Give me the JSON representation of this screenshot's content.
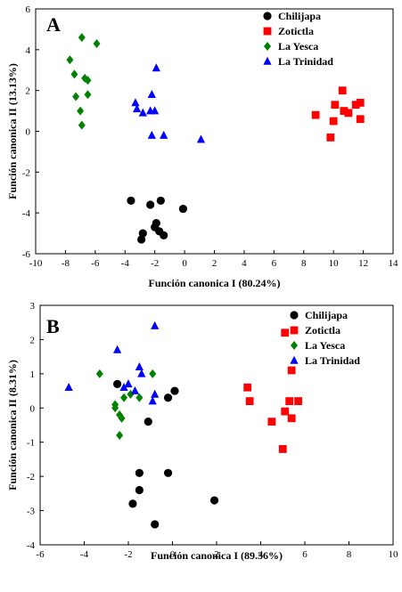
{
  "chart_data": [
    {
      "type": "scatter",
      "panel_label": "A",
      "xlabel": "Función canonica I (80.24%)",
      "ylabel": "Función canonica II (13.13%)",
      "xlim": [
        -10,
        14
      ],
      "ylim": [
        -6,
        6
      ],
      "xticks": [
        -10,
        -8,
        -6,
        -4,
        -2,
        0,
        2,
        4,
        6,
        8,
        10,
        12,
        14
      ],
      "yticks": [
        -6,
        -4,
        -2,
        0,
        2,
        4,
        6
      ],
      "legend_position": "top-right",
      "series": [
        {
          "name": "Chilijapa",
          "marker": "circle",
          "color": "#000000",
          "points": [
            [
              -3.6,
              -3.4
            ],
            [
              -2.8,
              -5.0
            ],
            [
              -2.9,
              -5.3
            ],
            [
              -2.3,
              -3.6
            ],
            [
              -1.6,
              -3.4
            ],
            [
              -1.9,
              -4.5
            ],
            [
              -2.0,
              -4.7
            ],
            [
              -1.7,
              -4.9
            ],
            [
              -1.4,
              -5.1
            ],
            [
              -0.1,
              -3.8
            ]
          ]
        },
        {
          "name": "Zotictla",
          "marker": "square",
          "color": "#ff0000",
          "points": [
            [
              8.8,
              0.8
            ],
            [
              9.8,
              -0.3
            ],
            [
              10.0,
              0.5
            ],
            [
              10.1,
              1.3
            ],
            [
              10.6,
              2.0
            ],
            [
              10.7,
              1.0
            ],
            [
              11.0,
              0.9
            ],
            [
              11.5,
              1.3
            ],
            [
              11.8,
              1.4
            ],
            [
              11.8,
              0.6
            ]
          ]
        },
        {
          "name": "La Yesca",
          "marker": "diamond",
          "color": "#008000",
          "points": [
            [
              -7.7,
              3.5
            ],
            [
              -7.4,
              2.8
            ],
            [
              -7.3,
              1.7
            ],
            [
              -7.0,
              1.0
            ],
            [
              -6.9,
              0.3
            ],
            [
              -6.9,
              4.6
            ],
            [
              -6.7,
              2.6
            ],
            [
              -6.5,
              2.5
            ],
            [
              -6.5,
              1.8
            ],
            [
              -5.9,
              4.3
            ]
          ]
        },
        {
          "name": "La Trinidad",
          "marker": "triangle",
          "color": "#0000ff",
          "points": [
            [
              -3.3,
              1.4
            ],
            [
              -3.2,
              1.1
            ],
            [
              -2.8,
              0.9
            ],
            [
              -2.3,
              1.0
            ],
            [
              -2.2,
              1.8
            ],
            [
              -2.0,
              1.0
            ],
            [
              -1.9,
              3.1
            ],
            [
              -2.2,
              -0.2
            ],
            [
              -1.4,
              -0.2
            ],
            [
              1.1,
              -0.4
            ]
          ]
        }
      ]
    },
    {
      "type": "scatter",
      "panel_label": "B",
      "xlabel": "Función canonica I (89.36%)",
      "ylabel": "Función canonica II (8.31%)",
      "xlim": [
        -6,
        10
      ],
      "ylim": [
        -4,
        3
      ],
      "xticks": [
        -6,
        -4,
        -2,
        0,
        2,
        4,
        6,
        8,
        10
      ],
      "yticks": [
        -4,
        -3,
        -2,
        -1,
        0,
        1,
        2,
        3
      ],
      "legend_position": "top-right",
      "series": [
        {
          "name": "Chilijapa",
          "marker": "circle",
          "color": "#000000",
          "points": [
            [
              -2.5,
              0.7
            ],
            [
              -1.1,
              -0.4
            ],
            [
              -0.2,
              0.3
            ],
            [
              0.1,
              0.5
            ],
            [
              -1.5,
              -1.9
            ],
            [
              -1.5,
              -2.4
            ],
            [
              -0.2,
              -1.9
            ],
            [
              -1.8,
              -2.8
            ],
            [
              1.9,
              -2.7
            ],
            [
              -0.8,
              -3.4
            ]
          ]
        },
        {
          "name": "Zotictla",
          "marker": "square",
          "color": "#ff0000",
          "points": [
            [
              3.4,
              0.6
            ],
            [
              3.5,
              0.2
            ],
            [
              4.5,
              -0.4
            ],
            [
              5.0,
              -1.2
            ],
            [
              5.1,
              -0.1
            ],
            [
              5.1,
              2.2
            ],
            [
              5.3,
              0.2
            ],
            [
              5.4,
              1.1
            ],
            [
              5.4,
              -0.3
            ],
            [
              5.7,
              0.2
            ]
          ]
        },
        {
          "name": "La Yesca",
          "marker": "diamond",
          "color": "#008000",
          "points": [
            [
              -3.3,
              1.0
            ],
            [
              -2.6,
              0.1
            ],
            [
              -2.6,
              0.0
            ],
            [
              -2.4,
              -0.2
            ],
            [
              -2.3,
              -0.3
            ],
            [
              -2.2,
              0.3
            ],
            [
              -2.4,
              -0.8
            ],
            [
              -1.9,
              0.4
            ],
            [
              -1.5,
              0.3
            ],
            [
              -0.9,
              1.0
            ]
          ]
        },
        {
          "name": "La Trinidad",
          "marker": "triangle",
          "color": "#0000ff",
          "points": [
            [
              -4.7,
              0.6
            ],
            [
              -2.5,
              1.7
            ],
            [
              -2.2,
              0.6
            ],
            [
              -2.0,
              0.7
            ],
            [
              -1.7,
              0.5
            ],
            [
              -1.5,
              1.2
            ],
            [
              -1.4,
              1.0
            ],
            [
              -0.8,
              0.4
            ],
            [
              -0.9,
              0.2
            ],
            [
              -0.8,
              2.4
            ]
          ]
        }
      ]
    }
  ]
}
